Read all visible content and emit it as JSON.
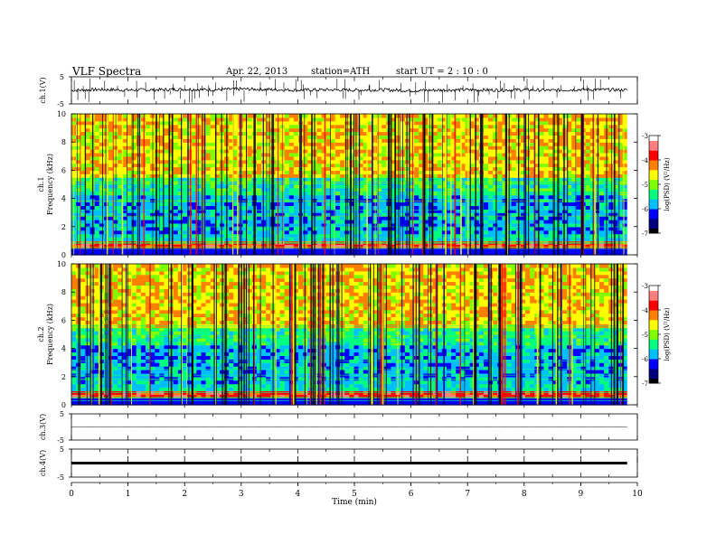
{
  "header": {
    "title": "VLF  Spectra",
    "date": "Apr. 22, 2013",
    "station": "station=ATH",
    "start": "start  UT  =    2  : 10 : 0"
  },
  "colors": {
    "spectrum_palette": [
      "#000000",
      "#00007f",
      "#0000ff",
      "#00bfff",
      "#00ff7f",
      "#7fff00",
      "#ffff00",
      "#ff7f00",
      "#ff0000",
      "#ff7f7f",
      "#ffffff"
    ],
    "trace": "#000000"
  },
  "chart_data": [
    {
      "type": "line",
      "panel": "ch1",
      "ylabel": "ch.1(V)",
      "yticks": [
        "5",
        "-5"
      ],
      "ylim": [
        -5,
        5
      ],
      "xlim": [
        0,
        10
      ],
      "x": [
        0,
        0.5,
        1,
        1.5,
        2,
        2.5,
        3,
        3.5,
        4,
        4.5,
        5,
        5.5,
        6,
        6.5,
        7,
        7.5,
        8,
        8.5,
        9,
        9.5,
        9.82
      ],
      "y": [
        0,
        0.3,
        0.1,
        0.2,
        0.4,
        0.2,
        0.5,
        0.3,
        0.1,
        0.2,
        0.1,
        0.2,
        -0.1,
        0.1,
        0.2,
        0.1,
        0.2,
        0.0,
        0.3,
        0.2,
        0.1
      ]
    },
    {
      "type": "heatmap",
      "panel": "ch1-spectrogram",
      "ylabel": "ch.1\nFrequency  (kHz)",
      "yticks": [
        "0",
        "2",
        "4",
        "6",
        "8",
        "10"
      ],
      "ylim": [
        0,
        10
      ],
      "xlim": [
        0,
        10
      ],
      "colorbar": {
        "label": "log(PSD) (V²/Hz)",
        "ticks": [
          "-3",
          "-4",
          "-5",
          "-6",
          "-7"
        ],
        "range": [
          -7,
          -3
        ]
      }
    },
    {
      "type": "heatmap",
      "panel": "ch2-spectrogram",
      "ylabel": "ch.2\nFrequency  (kHz)",
      "yticks": [
        "0",
        "2",
        "4",
        "6",
        "8",
        "10"
      ],
      "ylim": [
        0,
        10
      ],
      "xlim": [
        0,
        10
      ],
      "colorbar": {
        "label": "log(PSD) (V²/Hz)",
        "ticks": [
          "-3",
          "-4",
          "-5",
          "-6",
          "-7"
        ],
        "range": [
          -7,
          -3
        ]
      }
    },
    {
      "type": "line",
      "panel": "ch3",
      "ylabel": "ch.3(V)",
      "yticks": [
        "5",
        "-5"
      ],
      "ylim": [
        -5,
        5
      ],
      "xlim": [
        0,
        10
      ],
      "x": [
        0,
        9.82
      ],
      "y": [
        0,
        0
      ]
    },
    {
      "type": "line",
      "panel": "ch4",
      "ylabel": "ch.4(V)",
      "yticks": [
        "5",
        "-5"
      ],
      "ylim": [
        -5,
        5
      ],
      "xlim": [
        0,
        10
      ],
      "x": [
        0,
        9.82
      ],
      "y": [
        0,
        0
      ]
    }
  ],
  "xaxis": {
    "label": "Time  (min)",
    "ticks": [
      "0",
      "1",
      "2",
      "3",
      "4",
      "5",
      "6",
      "7",
      "8",
      "9",
      "10"
    ]
  }
}
